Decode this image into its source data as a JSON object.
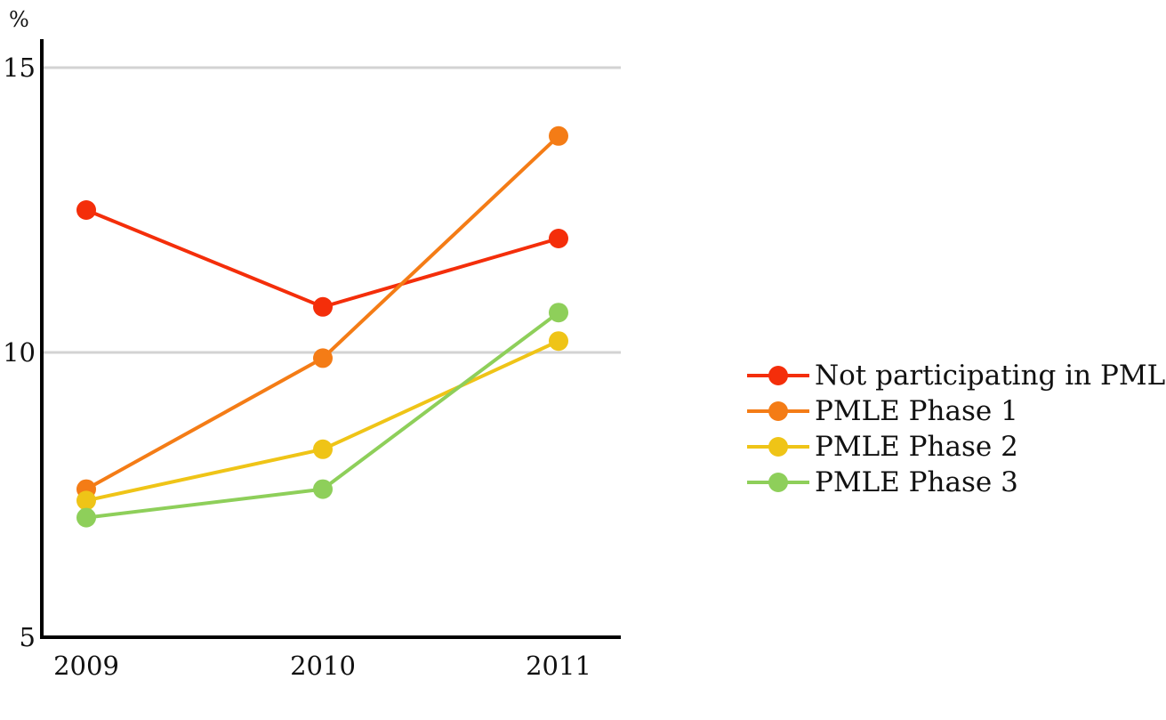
{
  "chart_data": {
    "type": "line",
    "unit_label": "%",
    "x": [
      "2009",
      "2010",
      "2011"
    ],
    "ylim": [
      5,
      15
    ],
    "yticks": [
      "5",
      "10",
      "15"
    ],
    "grid": true,
    "legend_position": "right",
    "series": [
      {
        "name": "Not participating in PMLE",
        "color": "#f42e0a",
        "values": [
          12.5,
          10.8,
          12.0
        ]
      },
      {
        "name": "PMLE Phase 1",
        "color": "#f47c16",
        "values": [
          7.6,
          9.9,
          13.8
        ]
      },
      {
        "name": "PMLE Phase 2",
        "color": "#efc417",
        "values": [
          7.4,
          8.3,
          10.2
        ]
      },
      {
        "name": "PMLE Phase 3",
        "color": "#8ecf5a",
        "values": [
          7.1,
          7.6,
          10.7
        ]
      }
    ]
  }
}
